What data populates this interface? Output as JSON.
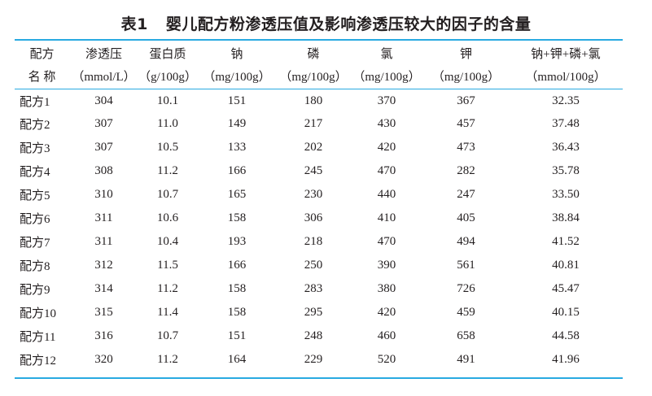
{
  "title": {
    "number": "表1",
    "text": "婴儿配方粉渗透压值及影响渗透压较大的因子的含量"
  },
  "colors": {
    "rule": "#29aae1",
    "text": "#231f20"
  },
  "header": {
    "row1": [
      "配方",
      "渗透压",
      "蛋白质",
      "钠",
      "磷",
      "氯",
      "钾",
      "钠+钾+磷+氯"
    ],
    "row2": [
      "名 称",
      "（mmol/L）",
      "（g/100g）",
      "（mg/100g）",
      "（mg/100g）",
      "（mg/100g）",
      "（mg/100g）",
      "（mmol/100g）"
    ]
  },
  "rows": [
    [
      "配方1",
      "304",
      "10.1",
      "151",
      "180",
      "370",
      "367",
      "32.35"
    ],
    [
      "配方2",
      "307",
      "11.0",
      "149",
      "217",
      "430",
      "457",
      "37.48"
    ],
    [
      "配方3",
      "307",
      "10.5",
      "133",
      "202",
      "420",
      "473",
      "36.43"
    ],
    [
      "配方4",
      "308",
      "11.2",
      "166",
      "245",
      "470",
      "282",
      "35.78"
    ],
    [
      "配方5",
      "310",
      "10.7",
      "165",
      "230",
      "440",
      "247",
      "33.50"
    ],
    [
      "配方6",
      "311",
      "10.6",
      "158",
      "306",
      "410",
      "405",
      "38.84"
    ],
    [
      "配方7",
      "311",
      "10.4",
      "193",
      "218",
      "470",
      "494",
      "41.52"
    ],
    [
      "配方8",
      "312",
      "11.5",
      "166",
      "250",
      "390",
      "561",
      "40.81"
    ],
    [
      "配方9",
      "314",
      "11.2",
      "158",
      "283",
      "380",
      "726",
      "45.47"
    ],
    [
      "配方10",
      "315",
      "11.4",
      "158",
      "295",
      "420",
      "459",
      "40.15"
    ],
    [
      "配方11",
      "316",
      "10.7",
      "151",
      "248",
      "460",
      "658",
      "44.58"
    ],
    [
      "配方12",
      "320",
      "11.2",
      "164",
      "229",
      "520",
      "491",
      "41.96"
    ]
  ]
}
